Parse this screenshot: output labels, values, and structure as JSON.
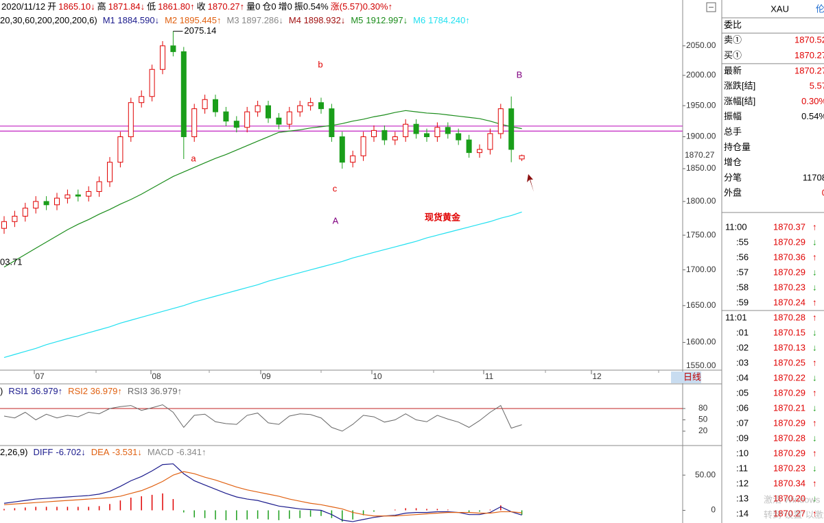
{
  "header": {
    "line1": [
      {
        "text": "2020/11/12",
        "color": "#000000"
      },
      {
        "text": "开",
        "color": "#000000"
      },
      {
        "text": "1865.10↓",
        "color": "#d00000"
      },
      {
        "text": "高",
        "color": "#000000"
      },
      {
        "text": "1871.84↓",
        "color": "#d00000"
      },
      {
        "text": "低",
        "color": "#000000"
      },
      {
        "text": "1861.80↑",
        "color": "#d00000"
      },
      {
        "text": "收",
        "color": "#000000"
      },
      {
        "text": "1870.27↑",
        "color": "#d00000"
      },
      {
        "text": "量0",
        "color": "#000000"
      },
      {
        "text": "仓0",
        "color": "#000000"
      },
      {
        "text": "增0",
        "color": "#000000"
      },
      {
        "text": "振0.54%",
        "color": "#000000"
      },
      {
        "text": "涨(5.57)0.30%↑",
        "color": "#d00000"
      }
    ],
    "ma_params": "20,30,60,200,200,200,6)",
    "ma_legend": [
      {
        "label": "M1 1884.590↓",
        "color": "#1a1a8c"
      },
      {
        "label": "M2 1895.445↑",
        "color": "#e06010"
      },
      {
        "label": "M3 1897.286↓",
        "color": "#888888"
      },
      {
        "label": "M4 1898.932↓",
        "color": "#a01010"
      }
    ]
  },
  "chart_data": [
    {
      "type": "candlestick",
      "log_scale": true,
      "ylim": [
        1550,
        2130
      ],
      "yticks": [
        {
          "value": 2050,
          "label": "2050.00"
        },
        {
          "value": 2000,
          "label": "2000.00"
        },
        {
          "value": 1950,
          "label": "1950.00"
        },
        {
          "value": 1900,
          "label": "1900.00"
        },
        {
          "value": 1850,
          "label": "1850.00"
        },
        {
          "value": 1800,
          "label": "1800.00"
        },
        {
          "value": 1750,
          "label": "1750.00"
        },
        {
          "value": 1700,
          "label": "1700.00"
        },
        {
          "value": 1650,
          "label": "1650.00"
        },
        {
          "value": 1600,
          "label": "1600.00"
        },
        {
          "value": 1550,
          "label": "1550.00"
        }
      ],
      "x_labels": [
        "07",
        "08",
        "09",
        "10",
        "11",
        "12"
      ],
      "period_button": "日线",
      "up_color": "#e00000",
      "down_color": "#1a9e1a",
      "open": [
        1760,
        1770,
        1778,
        1790,
        1800,
        1795,
        1805,
        1810,
        1808,
        1815,
        1830,
        1860,
        1900,
        1955,
        1965,
        2010,
        2050,
        2040,
        1900,
        1945,
        1960,
        1940,
        1925,
        1915,
        1940,
        1950,
        1930,
        1920,
        1940,
        1950,
        1955,
        1945,
        1900,
        1860,
        1870,
        1900,
        1910,
        1895,
        1900,
        1920,
        1905,
        1900,
        1915,
        1905,
        1895,
        1875,
        1880,
        1905,
        1945,
        1865.1
      ],
      "high": [
        1778,
        1786,
        1798,
        1808,
        1808,
        1813,
        1818,
        1818,
        1823,
        1838,
        1868,
        1908,
        1963,
        1975,
        2018,
        2058,
        2075.14,
        2048,
        1953,
        1968,
        1968,
        1948,
        1933,
        1948,
        1958,
        1958,
        1938,
        1948,
        1958,
        1963,
        1963,
        1953,
        1908,
        1878,
        1908,
        1918,
        1918,
        1908,
        1928,
        1928,
        1913,
        1923,
        1923,
        1913,
        1903,
        1888,
        1913,
        1953,
        1965,
        1871.84
      ],
      "low": [
        1752,
        1762,
        1770,
        1782,
        1787,
        1787,
        1797,
        1800,
        1800,
        1807,
        1822,
        1852,
        1892,
        1947,
        1957,
        2002,
        2032,
        1865,
        1892,
        1937,
        1932,
        1917,
        1907,
        1907,
        1932,
        1922,
        1912,
        1912,
        1932,
        1942,
        1937,
        1892,
        1850,
        1852,
        1862,
        1892,
        1887,
        1887,
        1892,
        1897,
        1892,
        1892,
        1897,
        1887,
        1867,
        1867,
        1872,
        1897,
        1860,
        1861.8
      ],
      "close": [
        1770,
        1778,
        1790,
        1800,
        1795,
        1805,
        1810,
        1808,
        1815,
        1830,
        1860,
        1900,
        1955,
        1965,
        2010,
        2050,
        2040,
        1900,
        1945,
        1960,
        1940,
        1925,
        1915,
        1940,
        1950,
        1930,
        1920,
        1940,
        1950,
        1955,
        1945,
        1900,
        1860,
        1870,
        1900,
        1910,
        1895,
        1900,
        1920,
        1905,
        1900,
        1915,
        1905,
        1895,
        1875,
        1880,
        1905,
        1945,
        1880,
        1870.27
      ],
      "series": [
        {
          "name": "M5",
          "legend_value": "1912.997↓",
          "color": "#1a8c1a",
          "values": [
            1704,
            1713,
            1722,
            1731,
            1740,
            1749,
            1758,
            1766,
            1773,
            1781,
            1788,
            1796,
            1803,
            1811,
            1820,
            1829,
            1838,
            1845,
            1852,
            1859,
            1866,
            1872,
            1879,
            1886,
            1893,
            1900,
            1907,
            1909,
            1911,
            1914,
            1916,
            1918,
            1921,
            1925,
            1928,
            1932,
            1935,
            1939,
            1942,
            1940,
            1938,
            1937,
            1935,
            1933,
            1931,
            1929,
            1925,
            1920,
            1916,
            1912.997
          ]
        },
        {
          "name": "M6",
          "legend_value": "1784.240↑",
          "color": "#20e0f0",
          "values": [
            1580,
            1584,
            1588,
            1592,
            1597,
            1601,
            1605,
            1609,
            1613,
            1617,
            1621,
            1626,
            1630,
            1634,
            1638,
            1642,
            1646,
            1650,
            1655,
            1659,
            1663,
            1667,
            1671,
            1675,
            1679,
            1684,
            1688,
            1692,
            1696,
            1700,
            1704,
            1708,
            1712,
            1717,
            1721,
            1725,
            1729,
            1733,
            1737,
            1741,
            1746,
            1750,
            1754,
            1758,
            1762,
            1766,
            1770,
            1775,
            1779,
            1784.24
          ]
        }
      ],
      "hlines": {
        "color": "#c020c0",
        "values": [
          1917,
          1909
        ]
      },
      "annotations": [
        {
          "text": "03.71",
          "color": "#000000"
        },
        {
          "text": "a",
          "color": "#e00000"
        },
        {
          "text": "b",
          "color": "#e00000"
        },
        {
          "text": "c",
          "color": "#e00000"
        },
        {
          "text": "A",
          "color": "#800080"
        },
        {
          "text": "B",
          "color": "#800080"
        },
        {
          "text": "现货黄金",
          "color": "#e00000"
        }
      ]
    },
    {
      "type": "line",
      "params": ")",
      "ylim": [
        0,
        100
      ],
      "yticks": [
        80,
        50,
        20
      ],
      "ref_line": {
        "value": 80,
        "color": "#c02020"
      },
      "legend": [
        {
          "label": "RSI1 36.979↑",
          "color": "#1a1a8c"
        },
        {
          "label": "RSI2 36.979↑",
          "color": "#e06010"
        }
      ],
      "series": [
        {
          "name": "RSI3",
          "legend_value": "36.979↑",
          "color": "#666666",
          "values": [
            60,
            55,
            70,
            50,
            65,
            55,
            62,
            58,
            70,
            66,
            80,
            85,
            88,
            75,
            82,
            90,
            70,
            30,
            62,
            65,
            45,
            40,
            38,
            62,
            68,
            42,
            38,
            60,
            66,
            64,
            55,
            30,
            20,
            38,
            62,
            58,
            44,
            50,
            66,
            50,
            45,
            62,
            52,
            44,
            30,
            48,
            70,
            88,
            28,
            36.979
          ]
        }
      ]
    },
    {
      "type": "macd",
      "params": "2,26,9)",
      "ylim": [
        -18,
        92
      ],
      "yticks": [
        {
          "value": 50,
          "label": "50.00"
        },
        0
      ],
      "up_color": "#e00000",
      "down_color": "#1a9e1a",
      "series": [
        {
          "name": "DIFF",
          "legend_value": "-6.702↓",
          "color": "#1a1a8c",
          "values": [
            10,
            12,
            14,
            16,
            17,
            18,
            19,
            20,
            21,
            23,
            27,
            34,
            42,
            48,
            56,
            65,
            66,
            52,
            42,
            36,
            30,
            24,
            19,
            16,
            14,
            10,
            6,
            4,
            2,
            1,
            0,
            -6,
            -14,
            -16,
            -13,
            -10,
            -8,
            -7,
            -4,
            -3,
            -3,
            -2,
            -2,
            -3,
            -6,
            -6,
            -3,
            5,
            -2,
            -6.702
          ]
        },
        {
          "name": "DEA",
          "legend_value": "-3.531↓",
          "color": "#e06010",
          "values": [
            8,
            9,
            10,
            11,
            12,
            13,
            14,
            15,
            16,
            17,
            18,
            20,
            24,
            28,
            34,
            41,
            50,
            55,
            52,
            47,
            43,
            38,
            33,
            29,
            26,
            23,
            20,
            16,
            13,
            10,
            8,
            5,
            2,
            -3,
            -6,
            -8,
            -8,
            -8,
            -7,
            -6,
            -5,
            -4,
            -3,
            -3,
            -3,
            -4,
            -4,
            -2,
            -2,
            -3.531
          ]
        }
      ],
      "histogram": {
        "name": "MACD",
        "legend_value": "-6.341↑",
        "color": "#888888",
        "values": [
          2,
          3,
          4,
          5,
          5,
          5,
          5,
          5,
          5,
          6,
          9,
          14,
          18,
          20,
          22,
          24,
          16,
          -3,
          -10,
          -11,
          -13,
          -14,
          -14,
          -13,
          -12,
          -13,
          -14,
          -12,
          -11,
          -9,
          -8,
          -11,
          -16,
          -13,
          -7,
          -2,
          0,
          1,
          3,
          3,
          2,
          2,
          1,
          0,
          -3,
          -2,
          1,
          7,
          0,
          -6.341
        ]
      }
    }
  ],
  "quote_panel": {
    "symbol": "XAU",
    "symbol_suffix": "伦",
    "rows": [
      {
        "label": "委比",
        "value": null
      },
      {
        "label": "卖①",
        "value": "1870.52"
      },
      {
        "label": "买①",
        "value": "1870.27"
      },
      {
        "label": "最新",
        "value": "1870.27"
      },
      {
        "label": "涨跌[结]",
        "value": "5.57"
      },
      {
        "label": "涨幅[结]",
        "value": "0.30%"
      },
      {
        "label": "振幅",
        "value": "0.54%"
      },
      {
        "label": "总手",
        "value": null
      },
      {
        "label": "持仓量",
        "value": null
      },
      {
        "label": "增仓",
        "value": null
      },
      {
        "label": "分笔",
        "value": "11708"
      },
      {
        "label": "外盘",
        "value": "0"
      }
    ],
    "ticks": [
      {
        "time": "11:00",
        "price": "1870.37",
        "dir": "↑"
      },
      {
        "time": ":55",
        "price": "1870.29",
        "dir": "↓"
      },
      {
        "time": ":56",
        "price": "1870.36",
        "dir": "↑"
      },
      {
        "time": ":57",
        "price": "1870.29",
        "dir": "↓"
      },
      {
        "time": ":58",
        "price": "1870.23",
        "dir": "↓"
      },
      {
        "time": ":59",
        "price": "1870.24",
        "dir": "↑"
      },
      {
        "time": "11:01",
        "price": "1870.28",
        "dir": "↑"
      },
      {
        "time": ":01",
        "price": "1870.15",
        "dir": "↓"
      },
      {
        "time": ":02",
        "price": "1870.13",
        "dir": "↓"
      },
      {
        "time": ":03",
        "price": "1870.25",
        "dir": "↑"
      },
      {
        "time": ":04",
        "price": "1870.22",
        "dir": "↓"
      },
      {
        "time": ":05",
        "price": "1870.29",
        "dir": "↑"
      },
      {
        "time": ":06",
        "price": "1870.21",
        "dir": "↓"
      },
      {
        "time": ":07",
        "price": "1870.29",
        "dir": "↑"
      },
      {
        "time": ":09",
        "price": "1870.28",
        "dir": "↓"
      },
      {
        "time": ":10",
        "price": "1870.29",
        "dir": "↑"
      },
      {
        "time": ":11",
        "price": "1870.23",
        "dir": "↓"
      },
      {
        "time": ":12",
        "price": "1870.34",
        "dir": "↑"
      },
      {
        "time": ":13",
        "price": "1870.20",
        "dir": "↓"
      },
      {
        "time": ":14",
        "price": "1870.27",
        "dir": "↑"
      }
    ]
  },
  "watermark": {
    "line1": "激活 Windows",
    "line2": "转到“设置”以激活 Windows。"
  }
}
